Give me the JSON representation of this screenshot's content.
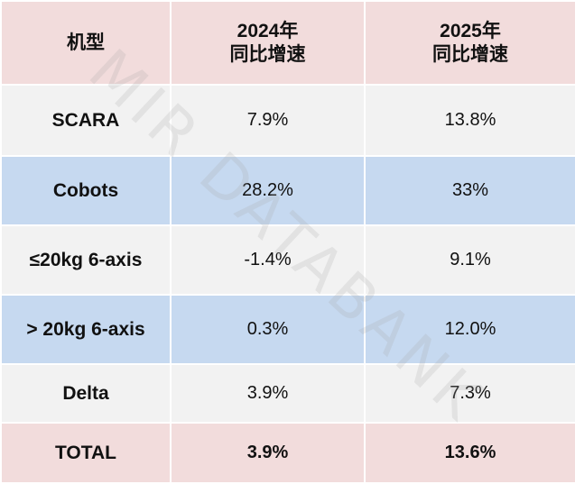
{
  "table": {
    "header": [
      [
        "机型"
      ],
      [
        "2024年",
        "同比增速"
      ],
      [
        "2025年",
        "同比增速"
      ]
    ],
    "rows": [
      [
        "SCARA",
        "7.9%",
        "13.8%"
      ],
      [
        "Cobots",
        "28.2%",
        "33%"
      ],
      [
        "≤20kg 6-axis",
        "-1.4%",
        "9.1%"
      ],
      [
        "> 20kg 6-axis",
        "0.3%",
        "12.0%"
      ],
      [
        "Delta",
        "3.9%",
        "7.3%"
      ],
      [
        "TOTAL",
        "3.9%",
        "13.6%"
      ]
    ]
  },
  "watermark": "MIR DATABANK"
}
